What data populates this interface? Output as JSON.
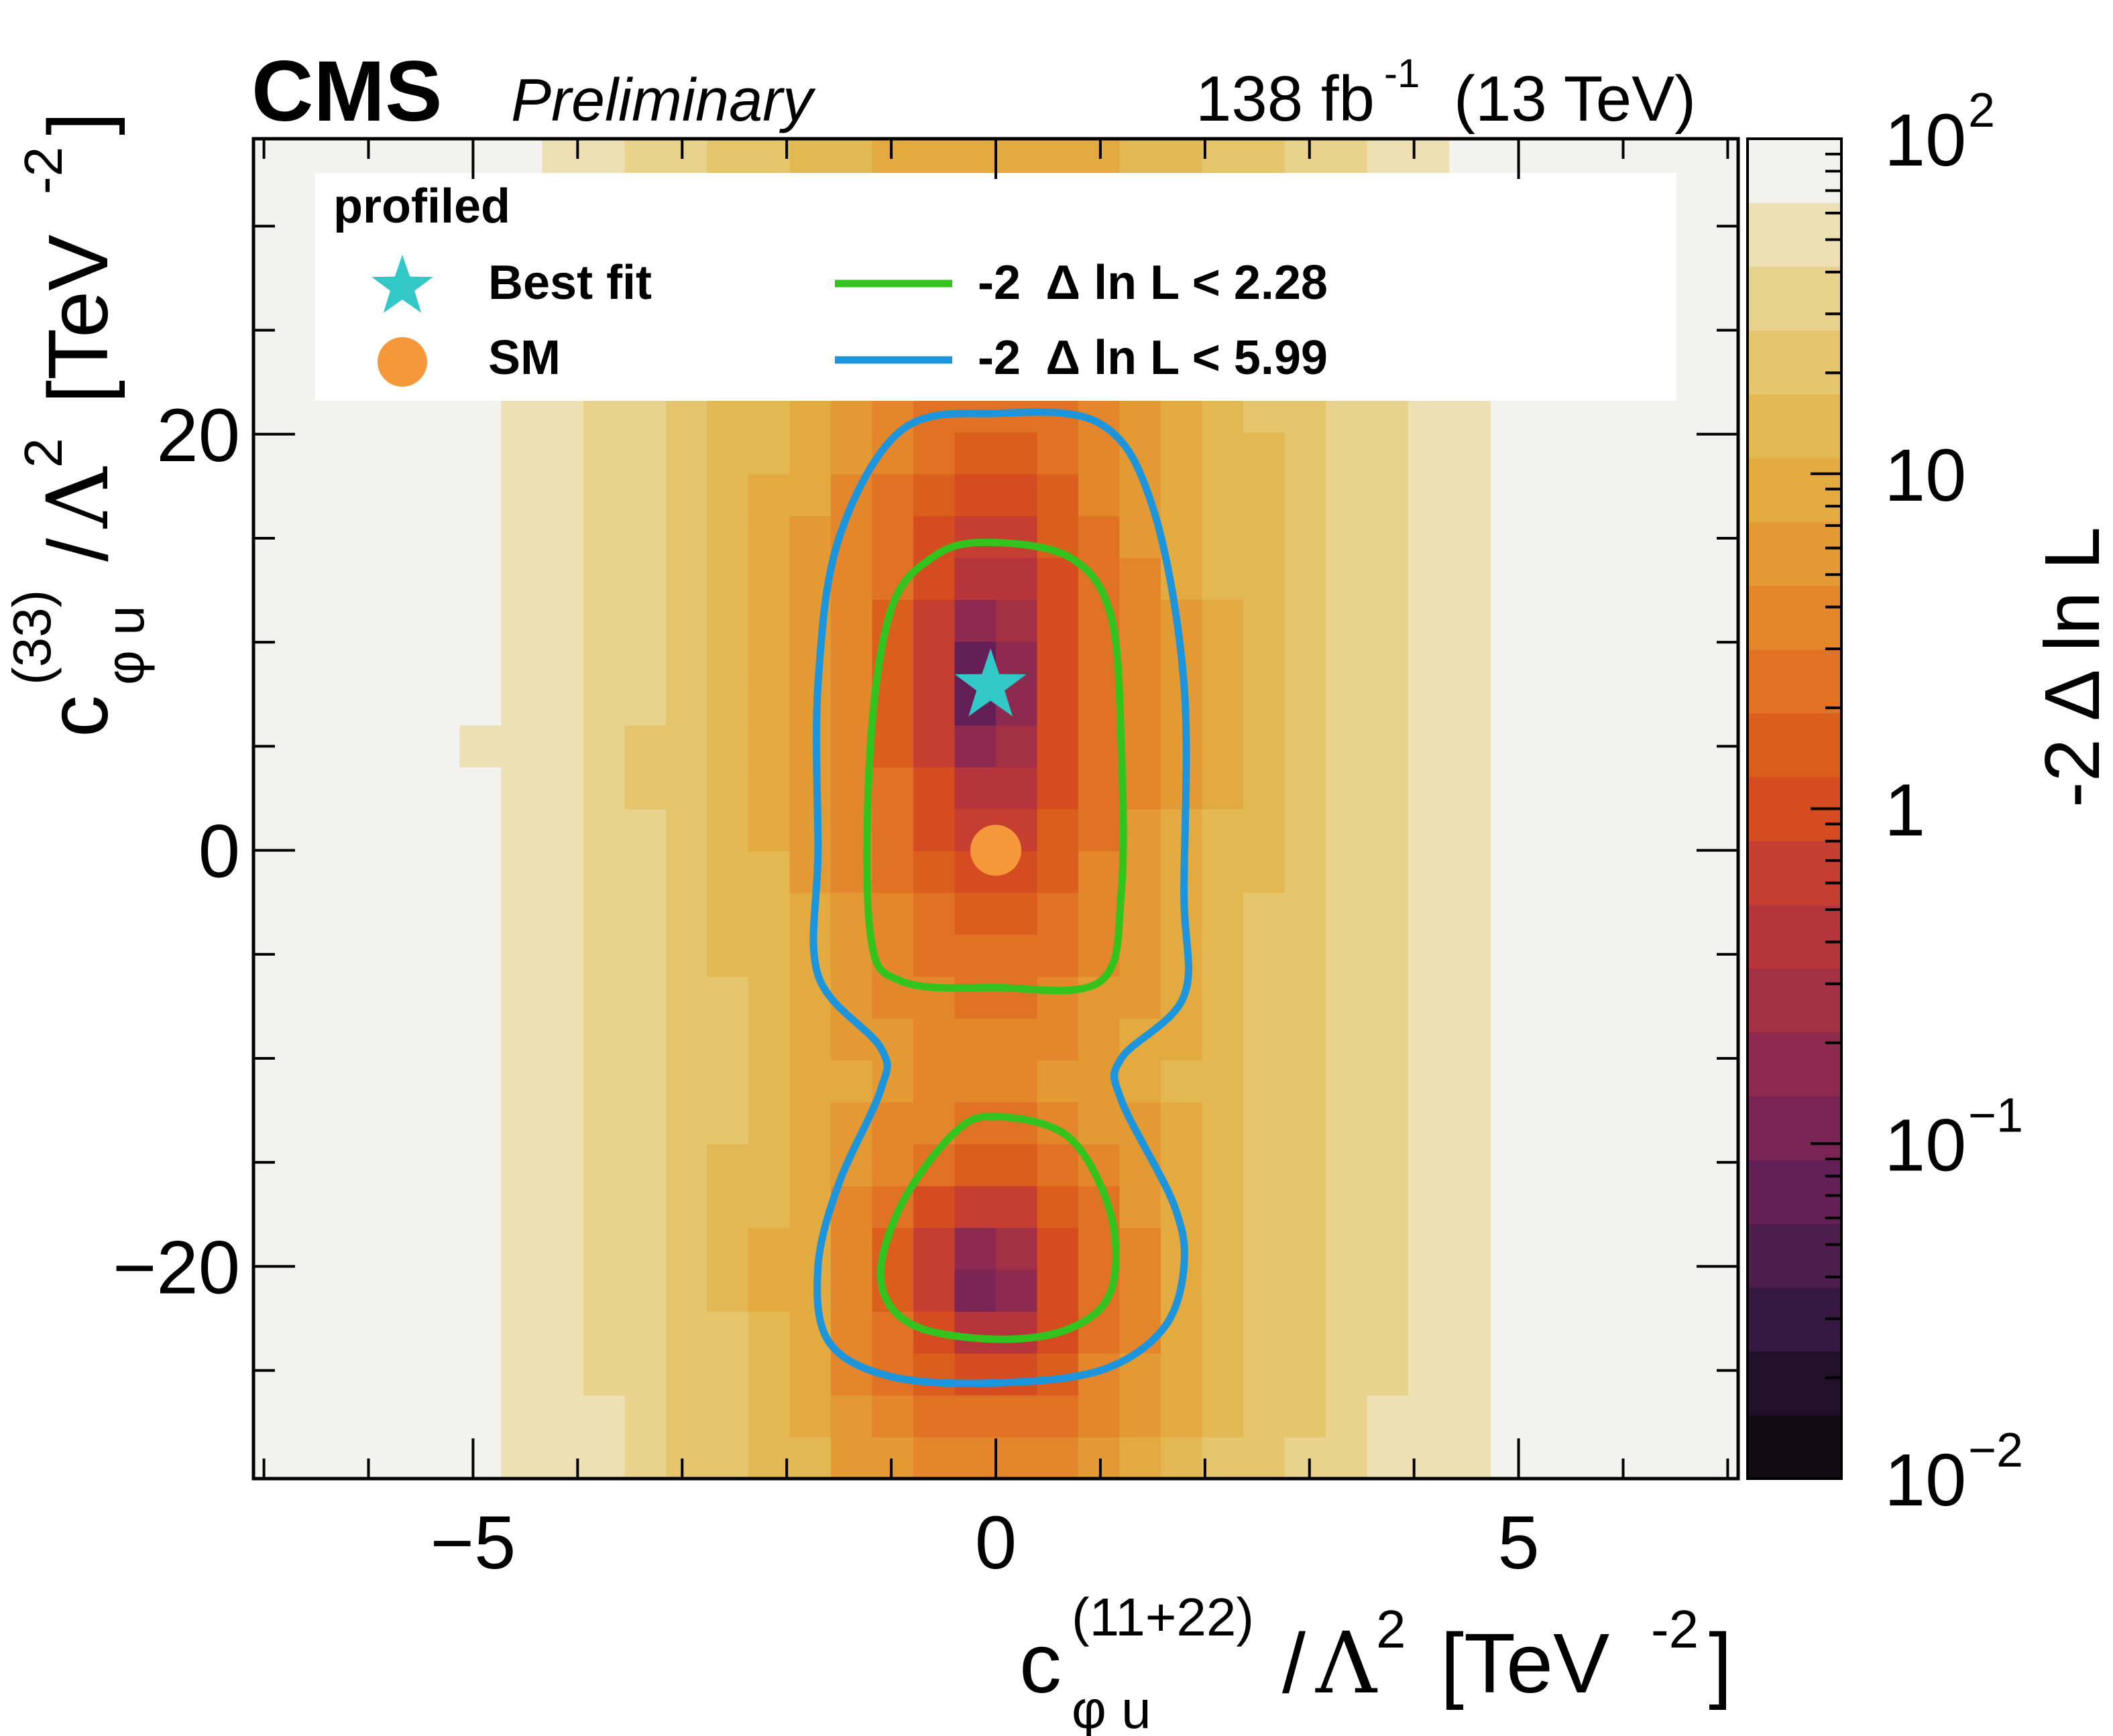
{
  "header": {
    "experiment": "CMS",
    "status": "Preliminary",
    "luminosity": "138 fb",
    "lumi_exp": "-1",
    "energy": "(13 TeV)"
  },
  "chart_data": {
    "type": "heatmap",
    "title": "",
    "xlabel": {
      "symbol": "c",
      "superscript": "(11+22)",
      "subscript": "φ u",
      "slash": "/",
      "lambda": "Λ",
      "lambda_exp": "2",
      "unit_open": "[TeV",
      "unit_exp": "-2",
      "unit_close": "]"
    },
    "ylabel": {
      "symbol": "c",
      "superscript": "(33)",
      "subscript": "φ u",
      "slash": "/",
      "lambda": "Λ",
      "lambda_exp": "2",
      "unit_open": "[TeV",
      "unit_exp": "-2",
      "unit_close": "]"
    },
    "xlim": [
      -7.1,
      7.1
    ],
    "ylim": [
      -30.2,
      34.2
    ],
    "xticks": [
      {
        "v": -5,
        "label": "−5"
      },
      {
        "v": 0,
        "label": "0"
      },
      {
        "v": 5,
        "label": "5"
      }
    ],
    "yticks": [
      {
        "v": -20,
        "label": "−20"
      },
      {
        "v": 0,
        "label": "0"
      },
      {
        "v": 20,
        "label": "20"
      }
    ],
    "colorbar": {
      "label": "-2 Δ ln L",
      "scale": "log",
      "range": [
        0.01,
        100
      ],
      "ticks": [
        {
          "v": 0.01,
          "base": "10",
          "exp": "−2"
        },
        {
          "v": 0.1,
          "base": "10",
          "exp": "−1"
        },
        {
          "v": 1,
          "base": "1",
          "exp": ""
        },
        {
          "v": 10,
          "base": "10",
          "exp": ""
        },
        {
          "v": 100,
          "base": "10",
          "exp": "2"
        }
      ],
      "palette": [
        "#140b12",
        "#21102a",
        "#361842",
        "#4d1d4f",
        "#651f57",
        "#7b2456",
        "#8f2a4f",
        "#a32f44",
        "#b5353b",
        "#c53e30",
        "#d44c20",
        "#db5f1c",
        "#e07323",
        "#e4862c",
        "#e39a33",
        "#e3aa3f",
        "#e3b853",
        "#e5c66d",
        "#e9d28c",
        "#ede1b4",
        "#f2f2ee"
      ]
    },
    "heatmap_model": {
      "description": "-2 delta ln L surface with minimum near the best fit",
      "x_bins": 36,
      "y_bins": 32
    },
    "best_fit": {
      "x": -0.05,
      "y": 7.9
    },
    "sm_point": {
      "x": 0.0,
      "y": 0.0
    },
    "contours": [
      {
        "name": "-2 Δ ln L < 2.28",
        "color": "#33c31d",
        "upper": [
          [
            -0.1,
            14.8
          ],
          [
            0.7,
            14.1
          ],
          [
            1.1,
            11.3
          ],
          [
            1.2,
            5.0
          ],
          [
            1.2,
            -2.0
          ],
          [
            1.0,
            -6.3
          ],
          [
            0.0,
            -6.6
          ],
          [
            -0.9,
            -6.3
          ],
          [
            -1.2,
            -4.0
          ],
          [
            -1.2,
            5.0
          ],
          [
            -1.0,
            11.6
          ],
          [
            -0.6,
            14.1
          ]
        ],
        "lower": [
          [
            0.0,
            -12.8
          ],
          [
            0.7,
            -13.8
          ],
          [
            1.1,
            -17.5
          ],
          [
            1.1,
            -21.2
          ],
          [
            0.7,
            -23.0
          ],
          [
            0.0,
            -23.5
          ],
          [
            -0.8,
            -22.8
          ],
          [
            -1.1,
            -20.6
          ],
          [
            -0.9,
            -17.0
          ],
          [
            -0.4,
            -13.6
          ]
        ]
      },
      {
        "name": "-2 Δ ln L < 5.99",
        "color": "#1d95dc",
        "outer": [
          [
            0.0,
            21.0
          ],
          [
            1.0,
            20.5
          ],
          [
            1.5,
            16.5
          ],
          [
            1.8,
            8.0
          ],
          [
            1.8,
            -2.0
          ],
          [
            1.8,
            -7.0
          ],
          [
            1.2,
            -10.0
          ],
          [
            1.2,
            -12.0
          ],
          [
            1.7,
            -17.0
          ],
          [
            1.8,
            -20.0
          ],
          [
            1.6,
            -23.0
          ],
          [
            1.0,
            -25.0
          ],
          [
            0.0,
            -25.6
          ],
          [
            -1.0,
            -25.3
          ],
          [
            -1.6,
            -23.6
          ],
          [
            -1.7,
            -20.0
          ],
          [
            -1.5,
            -16.0
          ],
          [
            -1.1,
            -11.5
          ],
          [
            -1.1,
            -9.5
          ],
          [
            -1.7,
            -6.0
          ],
          [
            -1.7,
            0.0
          ],
          [
            -1.7,
            8.0
          ],
          [
            -1.5,
            15.0
          ],
          [
            -0.9,
            20.2
          ]
        ]
      }
    ],
    "legend": {
      "position": "top",
      "title": "profiled",
      "entries": [
        {
          "label": "Best fit",
          "marker": "star",
          "color": "#32c8c8"
        },
        {
          "label": "SM",
          "marker": "circle",
          "color": "#f5983a"
        },
        {
          "label": "-2  Δ ln L < 2.28",
          "marker": "line",
          "color": "#33c31d"
        },
        {
          "label": "-2  Δ ln L < 5.99",
          "marker": "line",
          "color": "#1d95dc"
        }
      ]
    }
  }
}
